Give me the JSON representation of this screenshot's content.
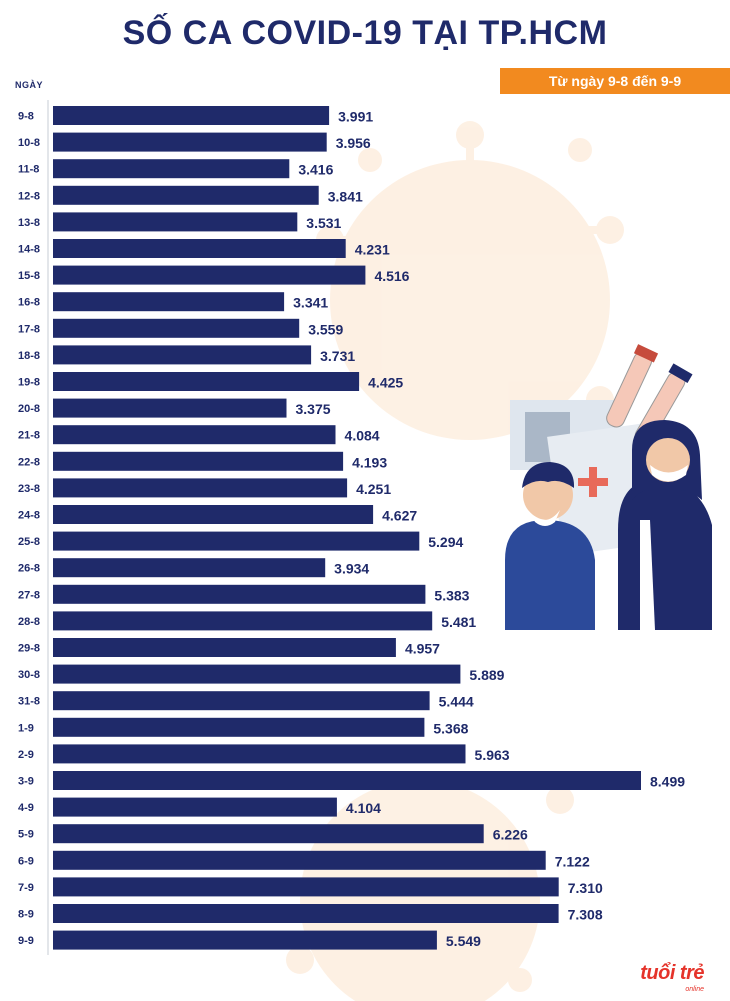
{
  "chart_data": {
    "type": "bar",
    "orientation": "horizontal",
    "title": "SỐ CA COVID-19 TẠI TP.HCM",
    "subtitle": "Từ ngày 9-8 đến 9-9",
    "ylabel": "NGÀY",
    "categories": [
      "9-8",
      "10-8",
      "11-8",
      "12-8",
      "13-8",
      "14-8",
      "15-8",
      "16-8",
      "17-8",
      "18-8",
      "19-8",
      "20-8",
      "21-8",
      "22-8",
      "23-8",
      "24-8",
      "25-8",
      "26-8",
      "27-8",
      "28-8",
      "29-8",
      "30-8",
      "31-8",
      "1-9",
      "2-9",
      "3-9",
      "4-9",
      "5-9",
      "6-9",
      "7-9",
      "8-9",
      "9-9"
    ],
    "values": [
      3991,
      3956,
      3416,
      3841,
      3531,
      4231,
      4516,
      3341,
      3559,
      3731,
      4425,
      3375,
      4084,
      4193,
      4251,
      4627,
      5294,
      3934,
      5383,
      5481,
      4957,
      5889,
      5444,
      5368,
      5963,
      8499,
      4104,
      6226,
      7122,
      7310,
      7308,
      5549
    ],
    "value_labels": [
      "3.991",
      "3.956",
      "3.416",
      "3.841",
      "3.531",
      "4.231",
      "4.516",
      "3.341",
      "3.559",
      "3.731",
      "4.425",
      "3.375",
      "4.084",
      "4.193",
      "4.251",
      "4.627",
      "5.294",
      "3.934",
      "5.383",
      "5.481",
      "4.957",
      "5.889",
      "5.444",
      "5.368",
      "5.963",
      "8.499",
      "4.104",
      "6.226",
      "7.122",
      "7.310",
      "7.308",
      "5.549"
    ],
    "xlim": [
      0,
      9000
    ],
    "grid": false,
    "legend": "none",
    "bar_color": "#1f2a6a"
  },
  "colors": {
    "accent": "#f28a1f",
    "text": "#1f2a6a",
    "logo": "#e5332a"
  },
  "logo": {
    "main": "tuổi trẻ",
    "sub": "online"
  }
}
